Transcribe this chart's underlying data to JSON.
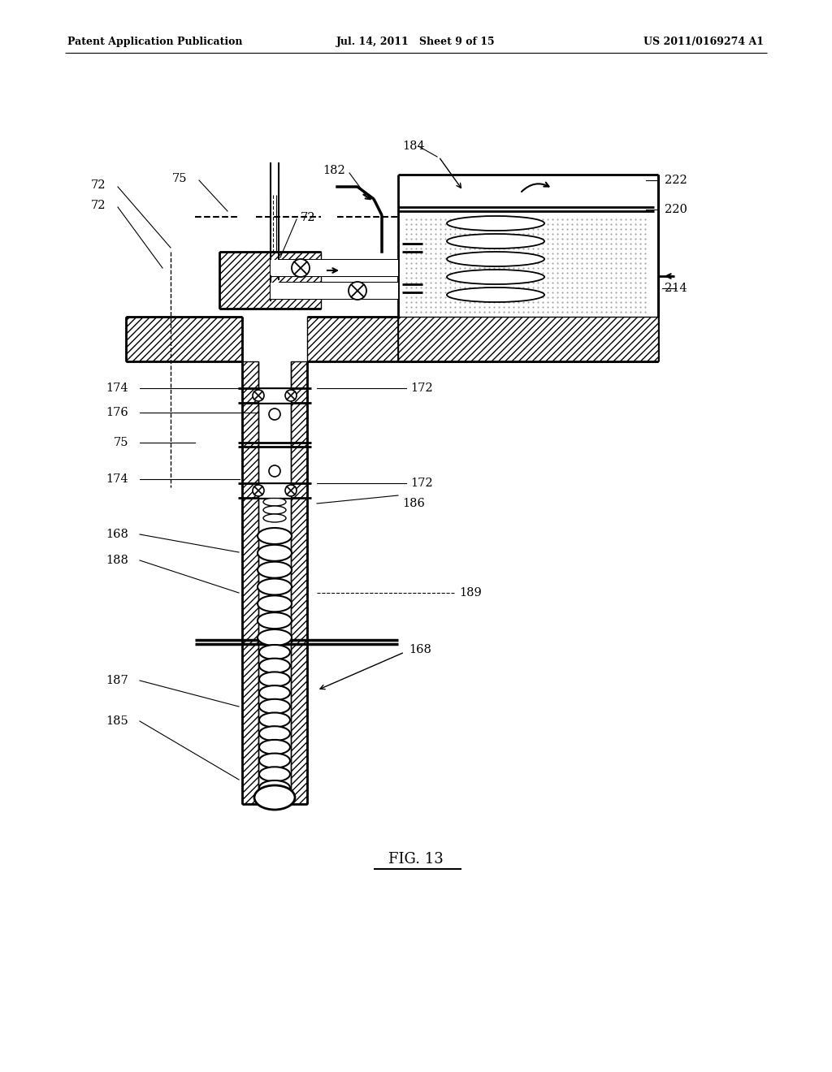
{
  "title_left": "Patent Application Publication",
  "title_mid": "Jul. 14, 2011   Sheet 9 of 15",
  "title_right": "US 2011/0169274 A1",
  "fig_label": "FIG. 13",
  "bg_color": "#ffffff"
}
